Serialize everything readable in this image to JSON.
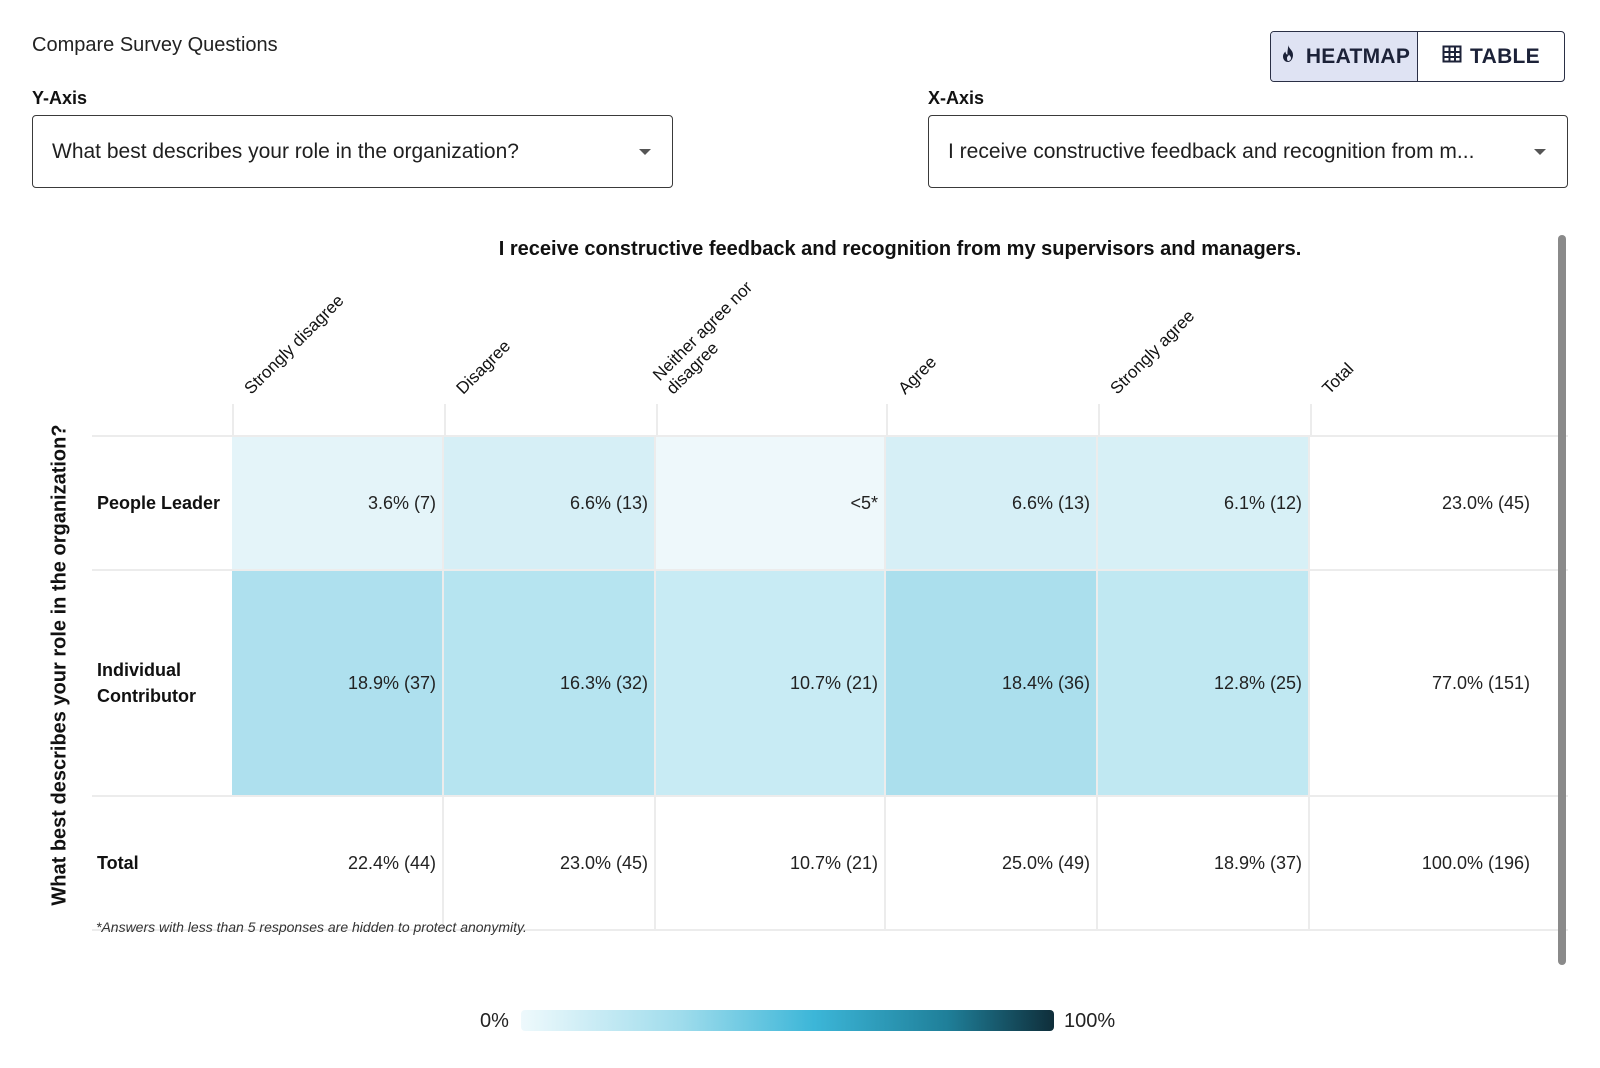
{
  "page": {
    "title": "Compare Survey Questions",
    "toggle": {
      "heatmap_label": "HEATMAP",
      "table_label": "TABLE",
      "active": "HEATMAP"
    },
    "y_axis": {
      "label": "Y-Axis",
      "value": "What best describes your role in the organization?"
    },
    "x_axis": {
      "label": "X-Axis",
      "value": "I receive constructive feedback and recognition from m..."
    }
  },
  "heatmap": {
    "title": "I receive constructive feedback and recognition from my supervisors and managers.",
    "y_title": "What best describes your role in the organization?",
    "columns": [
      "Strongly disagree",
      "Disagree",
      "Neither agree nor disagree",
      "Agree",
      "Strongly agree",
      "Total"
    ],
    "rows": [
      {
        "label": "People Leader",
        "cells": [
          "3.6% (7)",
          "6.6% (13)",
          "<5*",
          "6.6% (13)",
          "6.1% (12)",
          "23.0% (45)"
        ],
        "colors": [
          "#e4f4f9",
          "#d6eff6",
          "#eef8fb",
          "#d6eff6",
          "#d7f0f6",
          "#ffffff"
        ]
      },
      {
        "label": "Individual Contributor",
        "cells": [
          "18.9% (37)",
          "16.3% (32)",
          "10.7% (21)",
          "18.4% (36)",
          "12.8% (25)",
          "77.0% (151)"
        ],
        "colors": [
          "#aee0ee",
          "#b6e4f0",
          "#c8ebf4",
          "#abdfed",
          "#c0e8f2",
          "#ffffff"
        ]
      },
      {
        "label": "Total",
        "cells": [
          "22.4% (44)",
          "23.0% (45)",
          "10.7% (21)",
          "25.0% (49)",
          "18.9% (37)",
          "100.0% (196)"
        ],
        "colors": [
          "#ffffff",
          "#ffffff",
          "#ffffff",
          "#ffffff",
          "#ffffff",
          "#ffffff"
        ]
      }
    ],
    "footnote": "*Answers with less than 5 responses are hidden to protect anonymity.",
    "legend": {
      "min": "0%",
      "max": "100%"
    }
  }
}
